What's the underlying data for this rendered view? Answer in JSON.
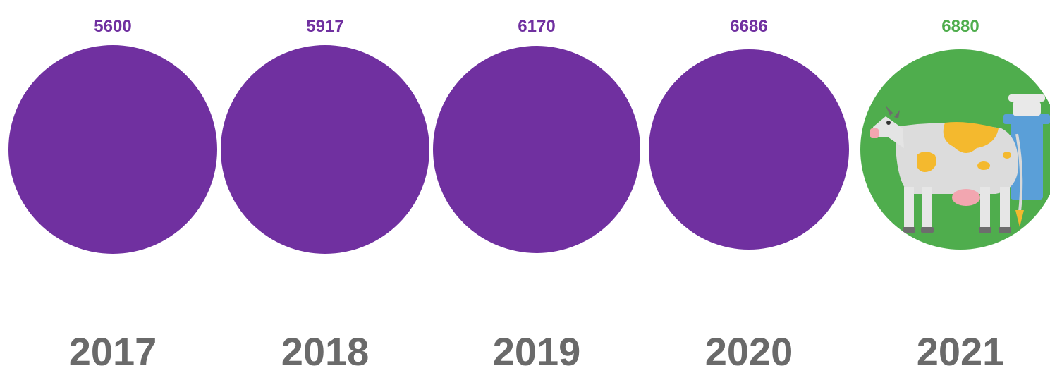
{
  "chart_data": {
    "type": "bubble",
    "title": "",
    "xlabel": "",
    "ylabel": "",
    "categories": [
      "2017",
      "2018",
      "2019",
      "2020",
      "2021"
    ],
    "values": [
      5600,
      5917,
      6170,
      6686,
      6880
    ],
    "value_labels": [
      "5600",
      "5917",
      "6170",
      "6686",
      "6880"
    ],
    "highlight_index": 4,
    "grid": false,
    "legend": "none"
  },
  "colors": {
    "bubble": "#7030a0",
    "highlight_bubble": "#4fad4d",
    "value_text": "#7030a0",
    "highlight_value_text": "#4fad4d",
    "year_text": "#6a6a6a"
  },
  "icons": {
    "highlight_icon": "cow-with-milk-can-icon"
  }
}
